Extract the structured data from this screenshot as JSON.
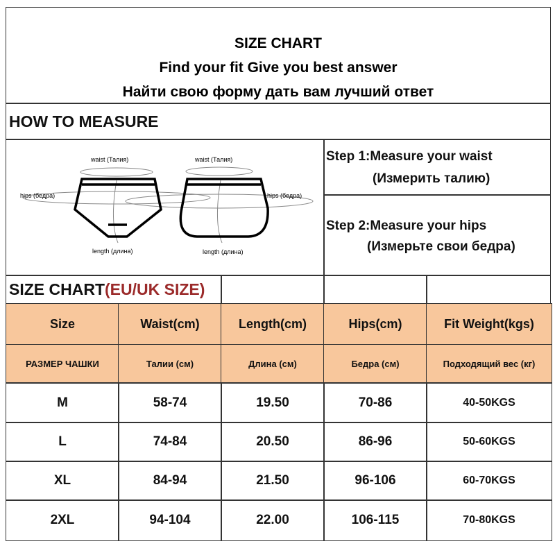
{
  "title": {
    "line1": "SIZE CHART",
    "line2": "Find your fit Give you best answer",
    "line3": "Найти свою форму дать вам лучший ответ"
  },
  "how_to_measure": {
    "heading": "HOW TO MEASURE",
    "diagram": {
      "waist": "waist (Талия)",
      "hips": "hips (бедра)",
      "length": "length (длина)"
    },
    "step1": {
      "en": "Step 1:Measure your waist",
      "ru": "(Измерить талию)"
    },
    "step2": {
      "en": "Step 2:Measure your hips",
      "ru": "(Измерьте свои бедра)"
    }
  },
  "size_chart": {
    "heading": "SIZE CHART",
    "heading_accent": "(EU/UK SIZE)",
    "accent_color": "#9b2a2a",
    "header_fill": "#f8c79c",
    "headers_en": [
      "Size",
      "Waist(cm)",
      "Length(cm)",
      "Hips(cm)",
      "Fit  Weight(kgs)"
    ],
    "headers_ru": [
      "РАЗМЕР ЧАШКИ",
      "Талии (см)",
      "Длина (см)",
      "Бедра (см)",
      "Подходящий вес (кг)"
    ],
    "rows": [
      [
        "M",
        "58-74",
        "19.50",
        "70-86",
        "40-50KGS"
      ],
      [
        "L",
        "74-84",
        "20.50",
        "86-96",
        "50-60KGS"
      ],
      [
        "XL",
        "84-94",
        "21.50",
        "96-106",
        "60-70KGS"
      ],
      [
        "2XL",
        "94-104",
        "22.00",
        "106-115",
        "70-80KGS"
      ]
    ]
  }
}
